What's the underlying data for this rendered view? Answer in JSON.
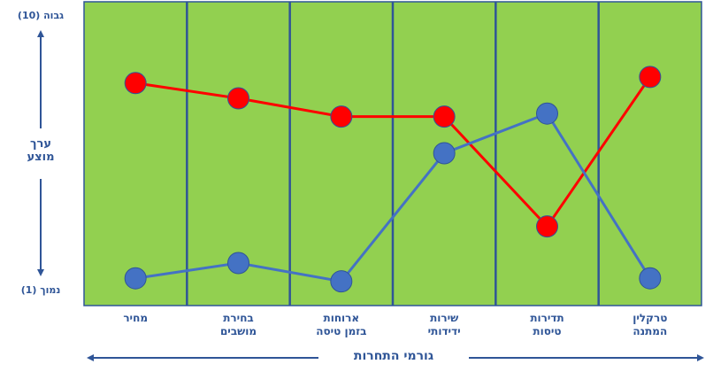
{
  "chart_data": {
    "type": "line",
    "y_axis_label": "ערך מוצע",
    "x_axis_label": "גורמי התחרות",
    "categories": [
      "מחיר",
      "בחירת מושבים",
      "ארוחות בזמן טיסה",
      "שירות ידידותי",
      "תדירות טיסות",
      "טרקלין המתנה"
    ],
    "series": [
      {
        "color": "#ff0000",
        "values": [
          7.8,
          7.3,
          6.7,
          6.7,
          3.1,
          8.0
        ]
      },
      {
        "color": "#4472c4",
        "values": [
          1.4,
          1.9,
          1.3,
          5.5,
          6.8,
          1.4
        ]
      }
    ],
    "ylim": [
      1,
      10
    ],
    "yticks": [
      {
        "value": 10,
        "label": "גבוה (10)"
      },
      {
        "value": 1,
        "label": "נמוך (1)"
      }
    ],
    "plot_color": "#92d050",
    "divider_color": "#2f5597"
  }
}
